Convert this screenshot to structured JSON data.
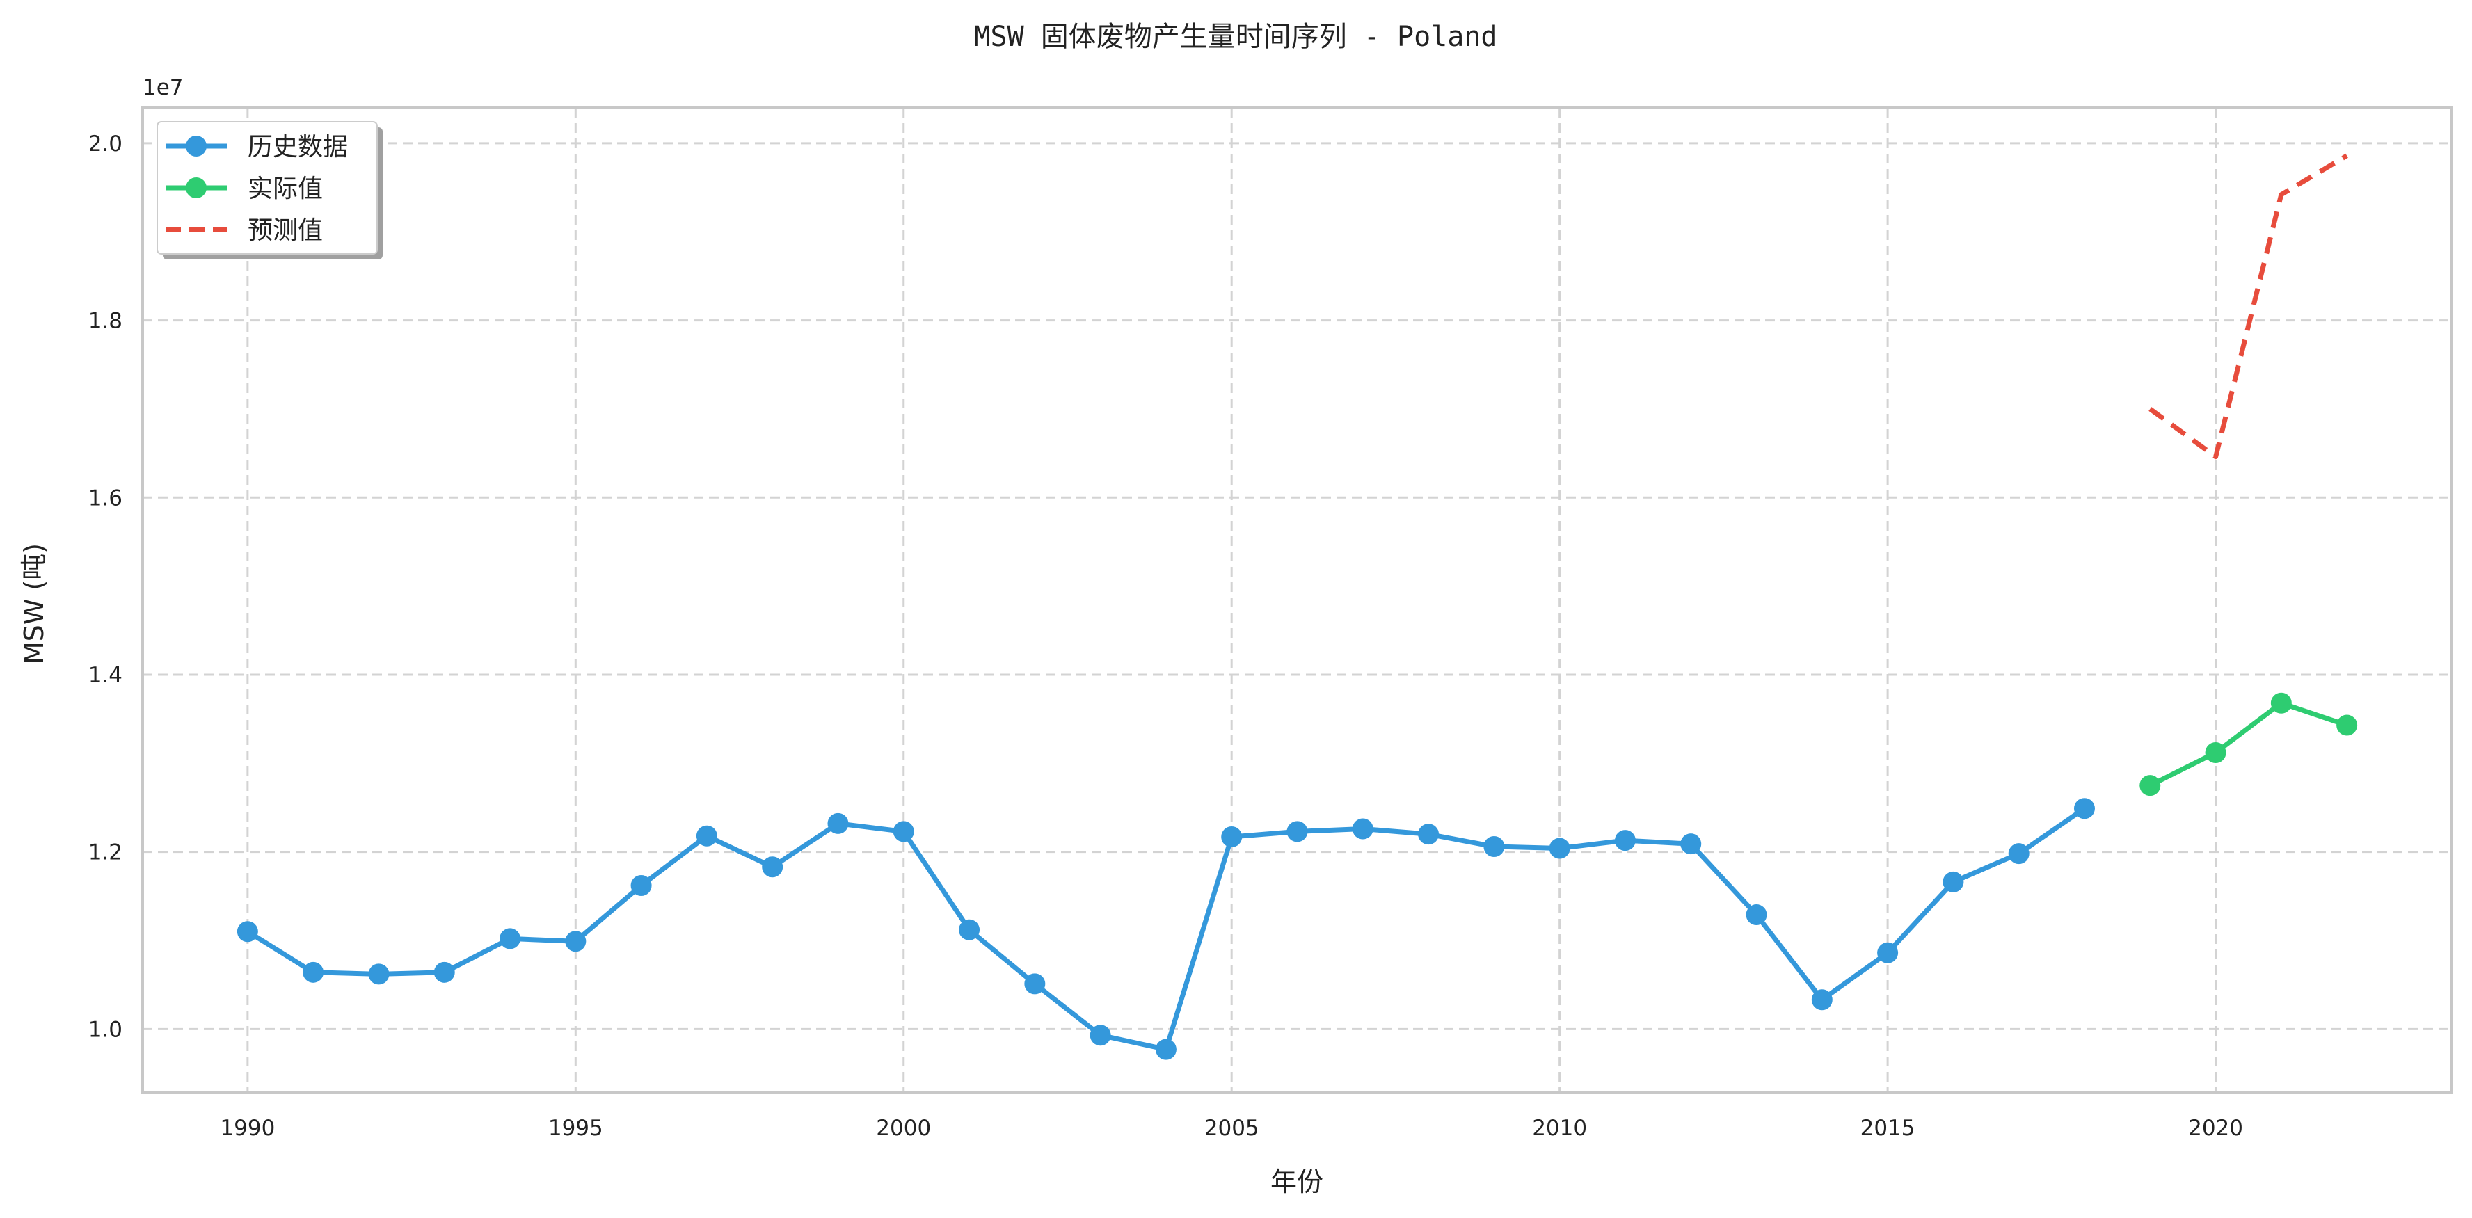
{
  "chart_data": {
    "type": "line",
    "title": "MSW 固体废物产生量时间序列 - Poland",
    "xlabel": "年份",
    "ylabel": "MSW (吨)",
    "y_multiplier_label": "1e7",
    "xlim": [
      1988.4,
      2023.6
    ],
    "ylim": [
      9280000,
      20400000
    ],
    "x_ticks": [
      1990,
      1995,
      2000,
      2005,
      2010,
      2015,
      2020
    ],
    "y_ticks": [
      10000000,
      12000000,
      14000000,
      16000000,
      18000000,
      20000000
    ],
    "y_tick_labels": [
      "1.0",
      "1.2",
      "1.4",
      "1.6",
      "1.8",
      "2.0"
    ],
    "grid": true,
    "legend_position": "top-left",
    "series": [
      {
        "name": "历史数据",
        "color": "#3498db",
        "style": "solid",
        "marker": true,
        "x": [
          1990,
          1991,
          1992,
          1993,
          1994,
          1995,
          1996,
          1997,
          1998,
          1999,
          2000,
          2001,
          2002,
          2003,
          2004,
          2005,
          2006,
          2007,
          2008,
          2009,
          2010,
          2011,
          2012,
          2013,
          2014,
          2015,
          2016,
          2017,
          2018
        ],
        "values": [
          11100000,
          10640000,
          10620000,
          10640000,
          11020000,
          10990000,
          11620000,
          12180000,
          11830000,
          12320000,
          12230000,
          11120000,
          10510000,
          9930000,
          9770000,
          12170000,
          12230000,
          12260000,
          12200000,
          12060000,
          12040000,
          12130000,
          12090000,
          11290000,
          10330000,
          10860000,
          11660000,
          11980000,
          12490000
        ]
      },
      {
        "name": "实际值",
        "color": "#2ecc71",
        "style": "solid",
        "marker": true,
        "x": [
          2019,
          2020,
          2021,
          2022
        ],
        "values": [
          12750000,
          13120000,
          13680000,
          13430000
        ]
      },
      {
        "name": "预测值",
        "color": "#e74c3c",
        "style": "dashed",
        "marker": false,
        "x": [
          2019,
          2020,
          2021,
          2022
        ],
        "values": [
          17000000,
          16460000,
          19420000,
          19860000
        ]
      }
    ]
  }
}
